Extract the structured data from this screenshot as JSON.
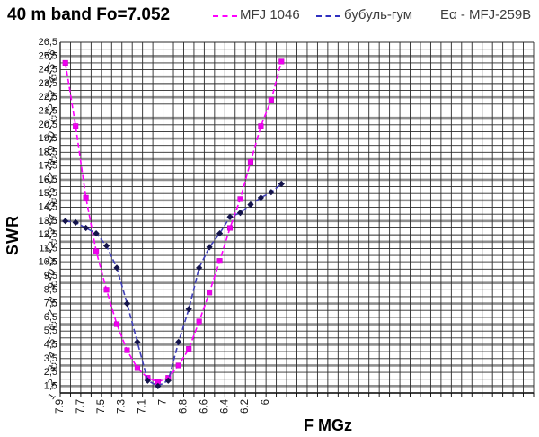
{
  "header": {
    "title": "40 m band Fo=7.052",
    "legend": [
      {
        "label": "MFJ 1046",
        "swatch_color": "#ff00ff"
      },
      {
        "label": "бубуль-гум",
        "swatch_color": "#3030c0"
      },
      {
        "label": "Eα - MFJ-259B",
        "swatch_color": null
      }
    ]
  },
  "axes": {
    "y_title": "SWR",
    "x_title": "F MGz"
  },
  "chart_data": {
    "type": "line",
    "title": "40 m band Fo=7.052",
    "xlabel": "F MGz",
    "ylabel": "SWR",
    "x_categories": [
      7.9,
      7.8,
      7.7,
      7.6,
      7.5,
      7.4,
      7.3,
      7.2,
      7.1,
      7.05,
      7.0,
      6.9,
      6.8,
      6.7,
      6.6,
      6.5,
      6.4,
      6.3,
      6.2,
      6.1,
      6.0,
      5.9
    ],
    "x_tick_labels": [
      "7.9",
      "7.7",
      "7.5",
      "7.3",
      "7.1",
      "7",
      "6.8",
      "6.6",
      "6.4",
      "6.2",
      "6"
    ],
    "x_tick_indices": [
      0,
      2,
      4,
      6,
      8,
      10,
      12,
      14,
      16,
      18,
      20
    ],
    "y_axis": {
      "min": 1,
      "max": 26.5,
      "minor_step": 0.5,
      "thick_line_step": 1.5,
      "decimal_separator": ","
    },
    "y_tick_labels": [
      "1",
      "1,5",
      "2",
      "2,5",
      "3",
      "3,5",
      "4",
      "4,5",
      "5",
      "5,5",
      "6",
      "6,5",
      "7",
      "7,5",
      "8",
      "8,5",
      "9",
      "9,5",
      "10",
      "10,5",
      "11",
      "11,5",
      "12",
      "12,5",
      "13",
      "13,5",
      "14",
      "14,5",
      "15",
      "15,5",
      "16",
      "16,5",
      "17",
      "17,5",
      "18",
      "18,5",
      "19",
      "19,5",
      "20",
      "20,5",
      "21",
      "21,5",
      "22",
      "22,5",
      "23",
      "23,5",
      "24",
      "24,5",
      "25",
      "25,5",
      "26",
      "26,5"
    ],
    "grid": true,
    "legend_position": "top",
    "series": [
      {
        "name": "MFJ 1046",
        "line_color": "#ff00ff",
        "marker_color": "#ee00ee",
        "marker": "square",
        "line_style": "dashed",
        "values": [
          25.0,
          20.4,
          15.2,
          11.3,
          8.5,
          6.0,
          4.1,
          2.8,
          2.1,
          1.8,
          2.1,
          3.0,
          4.2,
          6.2,
          8.3,
          10.6,
          13.0,
          15.1,
          17.8,
          20.4,
          22.3,
          25.1
        ]
      },
      {
        "name": "бубуль-гум",
        "line_color": "#4040b8",
        "marker_color": "#14144b",
        "marker": "diamond",
        "line_style": "dashed",
        "values": [
          13.5,
          13.4,
          13.0,
          12.6,
          11.7,
          10.1,
          7.5,
          4.7,
          1.9,
          1.5,
          1.9,
          4.7,
          7.1,
          10.1,
          11.6,
          12.6,
          13.8,
          14.1,
          14.7,
          15.2,
          15.6,
          16.2
        ]
      }
    ],
    "annotation": "Eα - MFJ-259B"
  }
}
